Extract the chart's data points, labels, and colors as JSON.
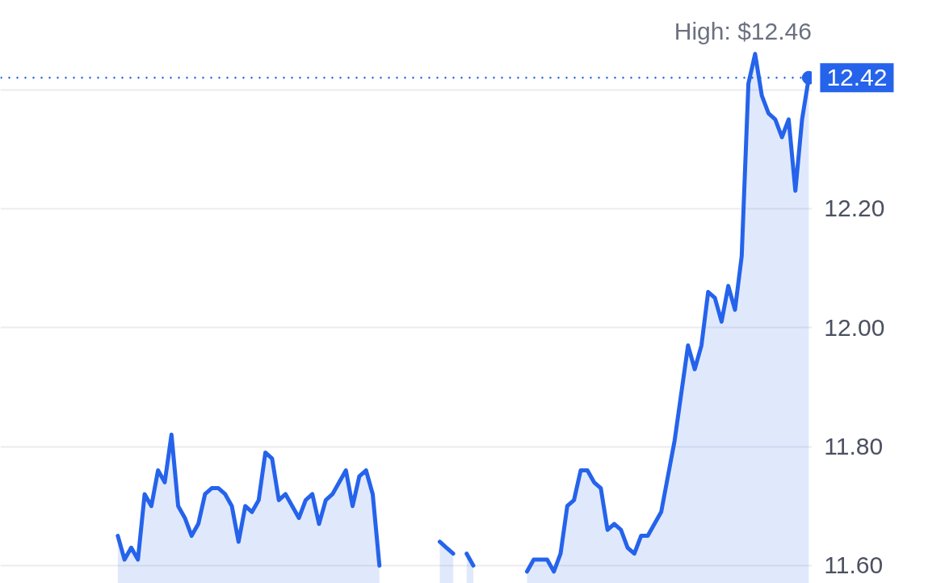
{
  "chart_data": {
    "type": "area",
    "categories": [
      null,
      null,
      null,
      null,
      null,
      null,
      null,
      null,
      null,
      null,
      null,
      null,
      null,
      null,
      null,
      null,
      null,
      null,
      null,
      null,
      null,
      null,
      null,
      null,
      null,
      null,
      null,
      null,
      null,
      null,
      null,
      null,
      null,
      null,
      null,
      null,
      null,
      null,
      null,
      null,
      null,
      null,
      null,
      null,
      null,
      null,
      null,
      null,
      null,
      null,
      null,
      null,
      null,
      null,
      null,
      null,
      null,
      null,
      null,
      null,
      null,
      null,
      null,
      null,
      null,
      null,
      null,
      null,
      null,
      null,
      null,
      null,
      null,
      null,
      null,
      null,
      null,
      null,
      null,
      null,
      null,
      null,
      null,
      null,
      null,
      null,
      null,
      null,
      null,
      null,
      null,
      null,
      null,
      null,
      null,
      null,
      null,
      null,
      null,
      null,
      null,
      null,
      null,
      null,
      null,
      null,
      null,
      null,
      null,
      null,
      null,
      null,
      null,
      null,
      null,
      null,
      null,
      null,
      null,
      null,
      null
    ],
    "series": [
      {
        "color": "#2563eb",
        "values": [
          null,
          null,
          null,
          null,
          null,
          null,
          null,
          null,
          null,
          null,
          null,
          null,
          null,
          null,
          null,
          null,
          null,
          11.65,
          11.61,
          11.63,
          11.61,
          11.72,
          11.7,
          11.76,
          11.74,
          11.82,
          11.7,
          11.68,
          11.65,
          11.67,
          11.72,
          11.73,
          11.73,
          11.72,
          11.7,
          11.64,
          11.7,
          11.69,
          11.71,
          11.79,
          11.78,
          11.71,
          11.72,
          11.7,
          11.68,
          11.71,
          11.72,
          11.67,
          11.71,
          11.72,
          11.74,
          11.76,
          11.7,
          11.75,
          11.76,
          11.72,
          11.6,
          null,
          null,
          null,
          null,
          null,
          null,
          null,
          null,
          11.64,
          11.63,
          11.62,
          null,
          11.62,
          11.6,
          null,
          null,
          null,
          null,
          null,
          null,
          null,
          11.59,
          11.61,
          11.61,
          11.61,
          11.59,
          11.62,
          11.7,
          11.71,
          11.76,
          11.76,
          11.74,
          11.73,
          11.66,
          11.67,
          11.66,
          11.63,
          11.62,
          11.65,
          11.65,
          11.67,
          11.69,
          11.75,
          11.81,
          11.89,
          11.97,
          11.93,
          11.97,
          12.06,
          12.05,
          12.01,
          12.07,
          12.03,
          12.12,
          12.41,
          12.46,
          12.39,
          12.36,
          12.35,
          12.32,
          12.35,
          12.23,
          12.35,
          12.42
        ]
      }
    ],
    "ylim": [
      11.57,
      12.55
    ],
    "yticks": [
      {
        "value": 11.6,
        "label": "11.60"
      },
      {
        "value": 11.8,
        "label": "11.80"
      },
      {
        "value": 12.0,
        "label": "12.00"
      },
      {
        "value": 12.2,
        "label": "12.20"
      },
      {
        "value": 12.4,
        "label": null
      }
    ],
    "grid": "y",
    "ref_lines": [
      {
        "axis": "y",
        "value": 12.42,
        "label": "12.42",
        "color": "#2563eb",
        "line_style": "dotted"
      }
    ],
    "annotations": [
      "High: $12.46"
    ]
  }
}
